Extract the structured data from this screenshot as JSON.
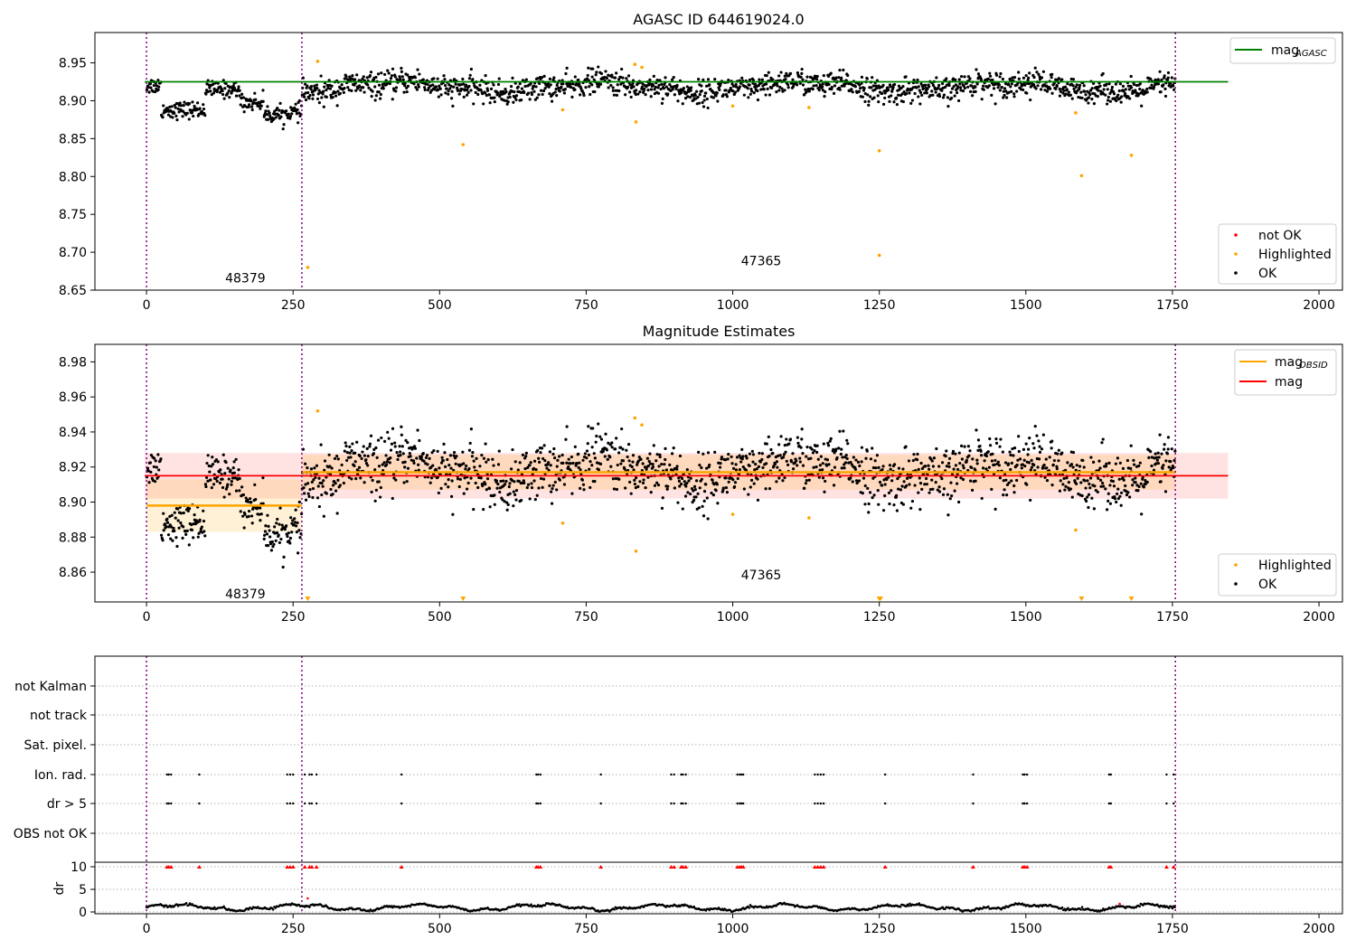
{
  "chart_data": [
    {
      "panel": "agasc",
      "type": "scatter",
      "title": "AGASC ID 644619024.0",
      "xlim": [
        -88,
        2040
      ],
      "ylim": [
        8.65,
        8.99
      ],
      "xticks": [
        0,
        250,
        500,
        750,
        1000,
        1250,
        1500,
        1750,
        2000
      ],
      "yticks": [
        8.65,
        8.7,
        8.75,
        8.8,
        8.85,
        8.9,
        8.95
      ],
      "ytick_labels": [
        "8.65",
        "8.70",
        "8.75",
        "8.80",
        "8.85",
        "8.90",
        "8.95"
      ],
      "mag_agasc": 8.925,
      "obsid_boundaries": [
        0,
        265,
        1755
      ],
      "obsids": [
        {
          "label": "48379",
          "x": 130,
          "y": 8.66
        },
        {
          "label": "47365",
          "x": 1010,
          "y": 8.683
        }
      ],
      "segments": [
        {
          "x0": 0,
          "x1": 265,
          "mean": 8.898,
          "sigma": 0.015
        },
        {
          "x0": 265,
          "x1": 1755,
          "mean": 8.918,
          "sigma": 0.01
        }
      ],
      "highlighted": [
        {
          "x": 275,
          "y": 8.68
        },
        {
          "x": 292,
          "y": 8.952
        },
        {
          "x": 540,
          "y": 8.842
        },
        {
          "x": 710,
          "y": 8.888
        },
        {
          "x": 835,
          "y": 8.872
        },
        {
          "x": 833,
          "y": 8.948
        },
        {
          "x": 845,
          "y": 8.944
        },
        {
          "x": 1000,
          "y": 8.893
        },
        {
          "x": 1130,
          "y": 8.891
        },
        {
          "x": 1250,
          "y": 8.834
        },
        {
          "x": 1250,
          "y": 8.696
        },
        {
          "x": 1585,
          "y": 8.884
        },
        {
          "x": 1595,
          "y": 8.801
        },
        {
          "x": 1680,
          "y": 8.828
        }
      ],
      "legend_top": [
        {
          "label": "mag",
          "sub": "AGASC",
          "color": "#008000"
        }
      ],
      "legend_bottom": [
        {
          "label": "not OK",
          "color": "#ff0000"
        },
        {
          "label": "Highlighted",
          "color": "#ffa500"
        },
        {
          "label": "OK",
          "color": "#000000"
        }
      ]
    },
    {
      "panel": "estimates",
      "type": "scatter",
      "title": "Magnitude Estimates",
      "xlim": [
        -88,
        2040
      ],
      "ylim": [
        8.843,
        8.99
      ],
      "xticks": [
        0,
        250,
        500,
        750,
        1000,
        1250,
        1500,
        1750,
        2000
      ],
      "yticks": [
        8.86,
        8.88,
        8.9,
        8.92,
        8.94,
        8.96,
        8.98
      ],
      "ytick_labels": [
        "8.86",
        "8.88",
        "8.90",
        "8.92",
        "8.94",
        "8.96",
        "8.98"
      ],
      "mag": 8.915,
      "mag_sigma": 0.013,
      "band_x": [
        -3,
        1845
      ],
      "obsid_boundaries": [
        0,
        265,
        1755
      ],
      "obsids": [
        {
          "label": "48379",
          "x": 130,
          "y": 8.845
        },
        {
          "label": "47365",
          "x": 1010,
          "y": 8.856
        }
      ],
      "segments": [
        {
          "x0": 0,
          "x1": 265,
          "mean": 8.898,
          "sigma": 0.015
        },
        {
          "x0": 265,
          "x1": 1755,
          "mean": 8.917,
          "sigma": 0.01
        }
      ],
      "highlighted": [
        {
          "x": 292,
          "y": 8.952
        },
        {
          "x": 710,
          "y": 8.888
        },
        {
          "x": 835,
          "y": 8.872
        },
        {
          "x": 833,
          "y": 8.948
        },
        {
          "x": 845,
          "y": 8.944
        },
        {
          "x": 1000,
          "y": 8.893
        },
        {
          "x": 1130,
          "y": 8.891
        },
        {
          "x": 1585,
          "y": 8.884
        }
      ],
      "below_range_x": [
        275,
        540,
        1250,
        1252,
        1595,
        1680
      ],
      "legend_top": [
        {
          "label": "mag",
          "sub": "OBSID",
          "color": "#ffa500"
        },
        {
          "label": "mag",
          "color": "#ff0000"
        }
      ],
      "legend_bottom": [
        {
          "label": "Highlighted",
          "color": "#ffa500"
        },
        {
          "label": "OK",
          "color": "#000000"
        }
      ]
    },
    {
      "panel": "flags",
      "type": "scatter",
      "xlim": [
        -88,
        2040
      ],
      "categories": [
        "not Kalman",
        "not track",
        "Sat. pixel.",
        "Ion. rad.",
        "dr > 5",
        "OBS not OK"
      ],
      "obsid_boundaries": [
        0,
        265,
        1755
      ],
      "flag_x": [
        35,
        38,
        42,
        90,
        240,
        245,
        250,
        270,
        278,
        282,
        290,
        435,
        665,
        668,
        672,
        775,
        895,
        900,
        912,
        915,
        920,
        1008,
        1012,
        1015,
        1018,
        1140,
        1145,
        1150,
        1155,
        1260,
        1410,
        1495,
        1498,
        1502,
        1642,
        1645,
        1740,
        1752
      ]
    },
    {
      "panel": "dr",
      "type": "scatter",
      "ylabel": "dr",
      "xlim": [
        -88,
        2040
      ],
      "ylim": [
        -0.4,
        11
      ],
      "xticks": [
        0,
        250,
        500,
        750,
        1000,
        1250,
        1500,
        1750,
        2000
      ],
      "yticks": [
        0,
        5,
        10
      ],
      "ytick_labels": [
        "0",
        "5",
        "10"
      ],
      "obsid_boundaries": [
        0,
        265,
        1755
      ],
      "capped_x": [
        35,
        38,
        42,
        90,
        240,
        245,
        250,
        270,
        278,
        282,
        290,
        435,
        665,
        668,
        672,
        775,
        895,
        900,
        912,
        915,
        920,
        1008,
        1012,
        1015,
        1018,
        1140,
        1145,
        1150,
        1155,
        1260,
        1410,
        1495,
        1498,
        1502,
        1642,
        1645,
        1740,
        1752
      ],
      "outliers": [
        {
          "x": 275,
          "y": 3.0
        },
        {
          "x": 1660,
          "y": 1.8
        }
      ]
    }
  ]
}
